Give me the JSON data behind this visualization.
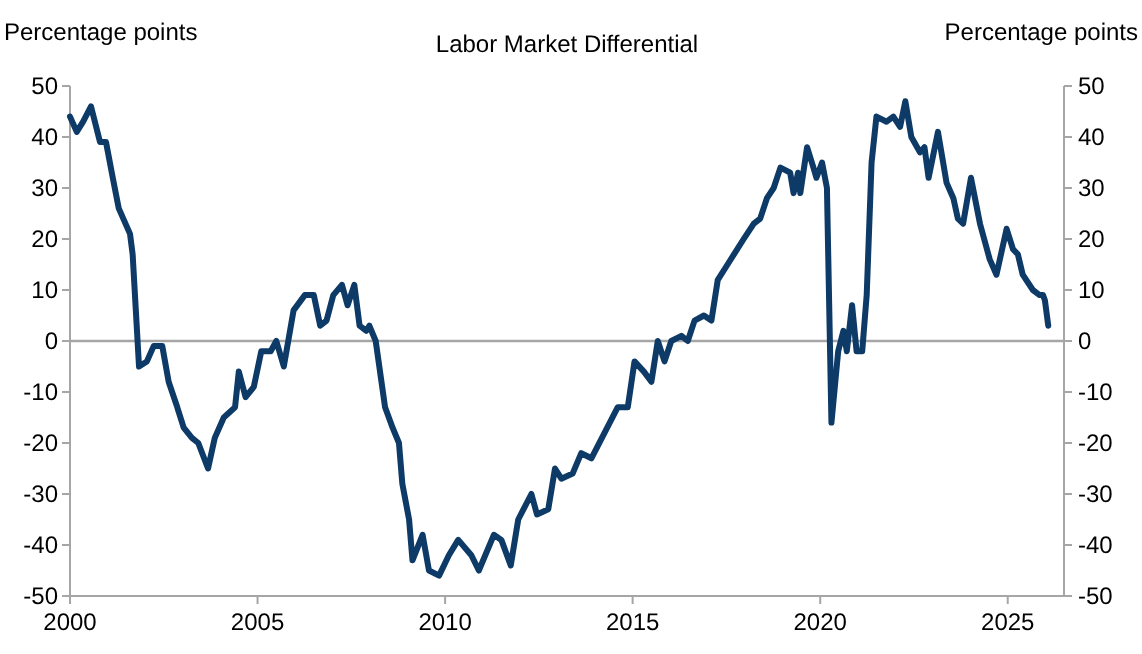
{
  "chart_data": {
    "type": "line",
    "title": "Labor Market Differential",
    "ylabel": "Percentage points",
    "y2label": "Percentage points",
    "xlim": [
      2000,
      2026.5
    ],
    "xticks": [
      2000,
      2005,
      2010,
      2015,
      2020,
      2025
    ],
    "ylim": [
      -50,
      50
    ],
    "yticks": [
      -50,
      -40,
      -30,
      -20,
      -10,
      0,
      10,
      20,
      30,
      40,
      50
    ],
    "y2lim": [
      -50,
      50
    ],
    "y2ticks": [
      -50,
      -40,
      -30,
      -20,
      -10,
      0,
      10,
      20,
      30,
      40,
      50
    ],
    "grid": false,
    "ref_lines": [
      {
        "axis": "y",
        "value": 0,
        "color": "#a6a6a6"
      }
    ],
    "x": [
      2000,
      2000.18,
      2000.35,
      2000.56,
      2000.8,
      2000.96,
      2001.14,
      2001.3,
      2001.6,
      2001.67,
      2001.84,
      2002.05,
      2002.23,
      2002.46,
      2002.63,
      2002.86,
      2003.03,
      2003.25,
      2003.42,
      2003.68,
      2003.86,
      2004.1,
      2004.4,
      2004.5,
      2004.68,
      2004.9,
      2005.1,
      2005.35,
      2005.5,
      2005.7,
      2005.96,
      2006.26,
      2006.5,
      2006.67,
      2006.84,
      2007.02,
      2007.25,
      2007.4,
      2007.58,
      2007.72,
      2007.9,
      2007.98,
      2008.15,
      2008.4,
      2008.6,
      2008.77,
      2008.86,
      2009.04,
      2009.13,
      2009.4,
      2009.57,
      2009.84,
      2010.1,
      2010.35,
      2010.7,
      2010.9,
      2011.3,
      2011.5,
      2011.75,
      2011.95,
      2012.3,
      2012.45,
      2012.75,
      2012.93,
      2013.1,
      2013.4,
      2013.63,
      2013.9,
      2014.25,
      2014.6,
      2014.87,
      2015.05,
      2015.3,
      2015.5,
      2015.67,
      2015.85,
      2016.03,
      2016.3,
      2016.47,
      2016.65,
      2016.9,
      2017.1,
      2017.27,
      2017.53,
      2017.96,
      2018.23,
      2018.4,
      2018.58,
      2018.76,
      2018.94,
      2019.2,
      2019.29,
      2019.41,
      2019.47,
      2019.65,
      2019.82,
      2019.9,
      2020.05,
      2020.18,
      2020.3,
      2020.48,
      2020.62,
      2020.71,
      2020.85,
      2020.97,
      2021.12,
      2021.24,
      2021.37,
      2021.5,
      2021.77,
      2021.95,
      2022.13,
      2022.27,
      2022.43,
      2022.66,
      2022.78,
      2022.89,
      2023.14,
      2023.37,
      2023.55,
      2023.67,
      2023.81,
      2024.02,
      2024.26,
      2024.52,
      2024.7,
      2024.97,
      2025.14,
      2025.27,
      2025.4,
      2025.67,
      2025.85,
      2025.94,
      2025.99,
      2026.08
    ],
    "series": [
      {
        "color": "#0d3a66",
        "line_style": "solid",
        "values": [
          44,
          41,
          43,
          46,
          39,
          39,
          32,
          26,
          21,
          17,
          -5,
          -4,
          -1,
          -1,
          -8,
          -13,
          -17,
          -19,
          -20,
          -25,
          -19,
          -15,
          -13,
          -6,
          -11,
          -9,
          -2,
          -2,
          0,
          -5,
          6,
          9,
          9,
          3,
          4,
          9,
          11,
          7,
          11,
          3,
          2,
          3,
          0,
          -13,
          -17,
          -20,
          -28,
          -35,
          -43,
          -38,
          -45,
          -46,
          -42,
          -39,
          -42,
          -45,
          -38,
          -39,
          -44,
          -35,
          -30,
          -34,
          -33,
          -25,
          -27,
          -26,
          -22,
          -23,
          -18,
          -13,
          -13,
          -4,
          -6,
          -8,
          0,
          -4,
          0,
          1,
          0,
          4,
          5,
          4,
          12,
          15,
          20,
          23,
          24,
          28,
          30,
          34,
          33,
          29,
          33,
          29,
          38,
          34,
          32,
          35,
          30,
          -16,
          -2,
          2,
          -2,
          7,
          -2,
          -2,
          9,
          35,
          44,
          43,
          44,
          42,
          47,
          40,
          37,
          38,
          32,
          41,
          31,
          28,
          24,
          23,
          32,
          23,
          16,
          13,
          22,
          18,
          17,
          13,
          10,
          9,
          9,
          8,
          3
        ]
      }
    ]
  }
}
